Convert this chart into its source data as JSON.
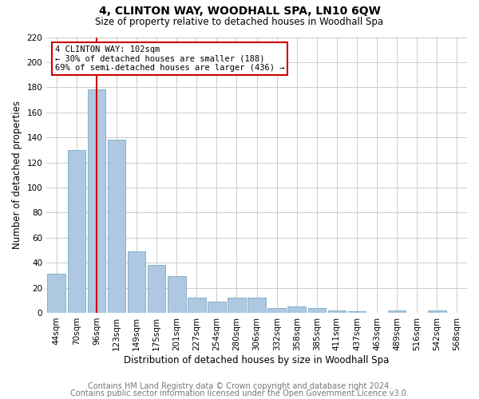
{
  "title": "4, CLINTON WAY, WOODHALL SPA, LN10 6QW",
  "subtitle": "Size of property relative to detached houses in Woodhall Spa",
  "xlabel": "Distribution of detached houses by size in Woodhall Spa",
  "ylabel": "Number of detached properties",
  "footnote1": "Contains HM Land Registry data © Crown copyright and database right 2024.",
  "footnote2": "Contains public sector information licensed under the Open Government Licence v3.0.",
  "categories": [
    "44sqm",
    "70sqm",
    "96sqm",
    "123sqm",
    "149sqm",
    "175sqm",
    "201sqm",
    "227sqm",
    "254sqm",
    "280sqm",
    "306sqm",
    "332sqm",
    "358sqm",
    "385sqm",
    "411sqm",
    "437sqm",
    "463sqm",
    "489sqm",
    "516sqm",
    "542sqm",
    "568sqm"
  ],
  "bar_heights": [
    31,
    130,
    178,
    138,
    49,
    38,
    29,
    12,
    9,
    12,
    12,
    4,
    5,
    4,
    2,
    1,
    0,
    2,
    0,
    2,
    0
  ],
  "bar_color": "#adc8e0",
  "bar_edge_color": "#7aaac8",
  "vline_x_index": 2,
  "vline_color": "#cc0000",
  "annotation_text": "4 CLINTON WAY: 102sqm\n← 30% of detached houses are smaller (188)\n69% of semi-detached houses are larger (436) →",
  "annotation_box_color": "#cc0000",
  "ylim": [
    0,
    220
  ],
  "yticks": [
    0,
    20,
    40,
    60,
    80,
    100,
    120,
    140,
    160,
    180,
    200,
    220
  ],
  "grid_color": "#cccccc",
  "background_color": "#ffffff",
  "title_fontsize": 10,
  "subtitle_fontsize": 8.5,
  "axis_label_fontsize": 8.5,
  "tick_fontsize": 7.5,
  "footnote_fontsize": 7
}
